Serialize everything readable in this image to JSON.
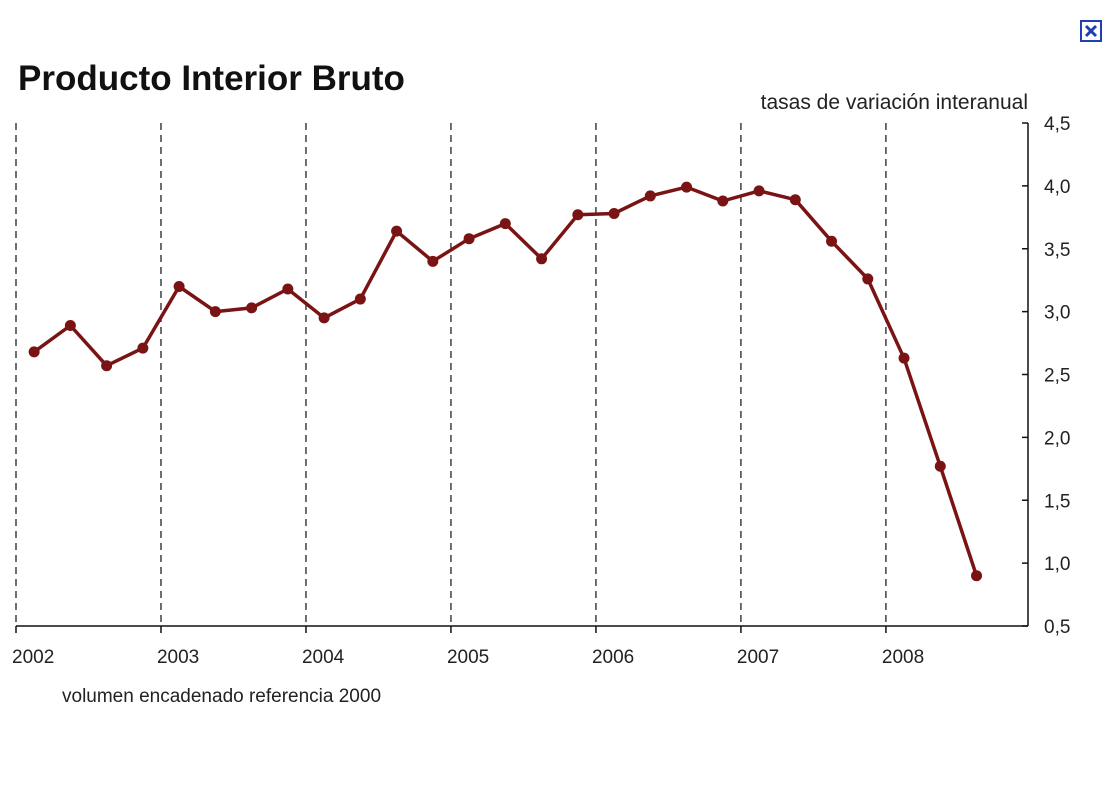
{
  "window": {
    "close_icon": "close-x-icon",
    "close_color": "#1f3fb5"
  },
  "chart_data": {
    "type": "line",
    "title": "Producto Interior Bruto",
    "subtitle": "tasas de variación interanual",
    "note": "volumen encadenado referencia 2000",
    "ylim": [
      0.5,
      4.5
    ],
    "yticks": [
      "4,5",
      "4,0",
      "3,5",
      "3,0",
      "2,5",
      "2,0",
      "1,5",
      "1,0",
      "0,5"
    ],
    "ytick_values": [
      4.5,
      4.0,
      3.5,
      3.0,
      2.5,
      2.0,
      1.5,
      1.0,
      0.5
    ],
    "xlim": [
      2002,
      2008.98
    ],
    "x_tick_labels": [
      "2002",
      "2003",
      "2004",
      "2005",
      "2006",
      "2007",
      "2008"
    ],
    "x_tick_values": [
      2002,
      2003,
      2004,
      2005,
      2006,
      2007,
      2008
    ],
    "grid": "vertical-dashed",
    "line_color": "#7a1414",
    "series": [
      {
        "x": [
          2002.125,
          2002.375,
          2002.625,
          2002.875,
          2003.125,
          2003.375,
          2003.625,
          2003.875,
          2004.125,
          2004.375,
          2004.625,
          2004.875,
          2005.125,
          2005.375,
          2005.625,
          2005.875,
          2006.125,
          2006.375,
          2006.625,
          2006.875,
          2007.125,
          2007.375,
          2007.625,
          2007.875,
          2008.125,
          2008.375,
          2008.625
        ],
        "values": [
          2.68,
          2.89,
          2.57,
          2.71,
          3.2,
          3.0,
          3.03,
          3.18,
          2.95,
          3.1,
          3.64,
          3.4,
          3.58,
          3.7,
          3.42,
          3.77,
          3.78,
          3.92,
          3.99,
          3.88,
          3.96,
          3.89,
          3.56,
          3.26,
          2.63,
          1.77,
          0.9
        ]
      }
    ]
  }
}
